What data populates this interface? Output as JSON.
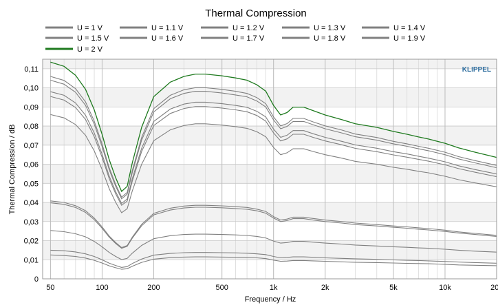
{
  "chart_data": {
    "type": "line",
    "title": "Thermal Compression",
    "xlabel": "Frequency / Hz",
    "ylabel": "Thermal Compression / dB",
    "x_scale": "log",
    "xlim": [
      45,
      20000
    ],
    "ylim": [
      0,
      0.115
    ],
    "grid": true,
    "legend_position": "top",
    "watermark": "KLIPPEL",
    "colors": {
      "series": "#808080",
      "highlight": "#1f7a1f",
      "watermark": "#2f6e9f",
      "plot_background": "#f2f2f2"
    },
    "x_ticks": [
      {
        "value": 50,
        "label": "50"
      },
      {
        "value": 100,
        "label": "100"
      },
      {
        "value": 200,
        "label": "200"
      },
      {
        "value": 500,
        "label": "500"
      },
      {
        "value": 1000,
        "label": "1k"
      },
      {
        "value": 2000,
        "label": "2k"
      },
      {
        "value": 5000,
        "label": "5k"
      },
      {
        "value": 10000,
        "label": "10k"
      },
      {
        "value": 20000,
        "label": "20k"
      }
    ],
    "y_ticks": [
      {
        "value": 0,
        "label": "0"
      },
      {
        "value": 0.01,
        "label": "0,01"
      },
      {
        "value": 0.02,
        "label": "0,02"
      },
      {
        "value": 0.03,
        "label": "0,03"
      },
      {
        "value": 0.04,
        "label": "0,04"
      },
      {
        "value": 0.05,
        "label": "0,05"
      },
      {
        "value": 0.06,
        "label": "0,06"
      },
      {
        "value": 0.07,
        "label": "0,07"
      },
      {
        "value": 0.08,
        "label": "0,08"
      },
      {
        "value": 0.09,
        "label": "0,09"
      },
      {
        "value": 0.1,
        "label": "0,10"
      },
      {
        "value": 0.11,
        "label": "0,11"
      }
    ],
    "x": [
      50,
      60,
      70,
      80,
      90,
      100,
      110,
      120,
      130,
      140,
      150,
      170,
      200,
      250,
      300,
      350,
      400,
      500,
      600,
      700,
      800,
      900,
      1000,
      1100,
      1200,
      1300,
      1500,
      1700,
      2000,
      2500,
      3000,
      4000,
      5000,
      6000,
      7000,
      8000,
      10000,
      12000,
      15000,
      20000
    ],
    "series": [
      {
        "name": "U = 1 V",
        "values": [
          0.0125,
          0.0122,
          0.0117,
          0.0109,
          0.0097,
          0.0083,
          0.0068,
          0.0058,
          0.005,
          0.0053,
          0.0066,
          0.0086,
          0.0103,
          0.0111,
          0.0114,
          0.0115,
          0.0115,
          0.0114,
          0.0113,
          0.0112,
          0.011,
          0.0106,
          0.0098,
          0.0092,
          0.0093,
          0.0096,
          0.0096,
          0.0094,
          0.0092,
          0.0089,
          0.0087,
          0.0085,
          0.0083,
          0.0081,
          0.008,
          0.0079,
          0.0076,
          0.0073,
          0.0071,
          0.0069
        ]
      },
      {
        "name": "U = 1.1 V",
        "values": [
          0.015,
          0.0147,
          0.0141,
          0.0131,
          0.0117,
          0.01,
          0.0082,
          0.007,
          0.006,
          0.0064,
          0.008,
          0.0104,
          0.0124,
          0.0133,
          0.0137,
          0.0138,
          0.0138,
          0.0137,
          0.0136,
          0.0134,
          0.0131,
          0.0127,
          0.0117,
          0.011,
          0.0112,
          0.0115,
          0.0115,
          0.0113,
          0.011,
          0.0107,
          0.0105,
          0.0102,
          0.0099,
          0.0097,
          0.0096,
          0.0094,
          0.0091,
          0.0088,
          0.0085,
          0.0082
        ]
      },
      {
        "name": "U = 1.2 V",
        "values": [
          0.0253,
          0.0247,
          0.0236,
          0.022,
          0.0196,
          0.0168,
          0.0138,
          0.0117,
          0.0101,
          0.0107,
          0.0134,
          0.0175,
          0.021,
          0.0226,
          0.0232,
          0.0234,
          0.0234,
          0.0232,
          0.023,
          0.0227,
          0.0222,
          0.0214,
          0.0198,
          0.0187,
          0.019,
          0.0196,
          0.0196,
          0.0192,
          0.0187,
          0.0182,
          0.0177,
          0.0172,
          0.0168,
          0.0165,
          0.0162,
          0.016,
          0.0155,
          0.015,
          0.0145,
          0.014
        ]
      },
      {
        "name": "U = 1.3 V",
        "values": [
          0.0398,
          0.039,
          0.0374,
          0.0348,
          0.031,
          0.0265,
          0.0218,
          0.0185,
          0.016,
          0.017,
          0.0213,
          0.0278,
          0.0335,
          0.036,
          0.0371,
          0.0375,
          0.0375,
          0.0372,
          0.0368,
          0.0364,
          0.0356,
          0.0344,
          0.0318,
          0.03,
          0.0305,
          0.0315,
          0.0315,
          0.0308,
          0.03,
          0.0292,
          0.0284,
          0.0277,
          0.027,
          0.0265,
          0.026,
          0.0256,
          0.0248,
          0.024,
          0.0232,
          0.0222
        ]
      },
      {
        "name": "U = 1.4 V",
        "values": [
          0.0408,
          0.04,
          0.0383,
          0.0357,
          0.0318,
          0.0272,
          0.0224,
          0.019,
          0.0164,
          0.0174,
          0.0218,
          0.0285,
          0.0343,
          0.037,
          0.0381,
          0.0385,
          0.0385,
          0.0382,
          0.0378,
          0.0374,
          0.0365,
          0.0353,
          0.0326,
          0.0308,
          0.0313,
          0.0323,
          0.0323,
          0.0316,
          0.0308,
          0.03,
          0.0292,
          0.0284,
          0.0277,
          0.0272,
          0.0267,
          0.0263,
          0.0255,
          0.0246,
          0.0238,
          0.0228
        ]
      },
      {
        "name": "U = 1.5 V",
        "values": [
          0.086,
          0.0843,
          0.0808,
          0.0752,
          0.067,
          0.0573,
          0.0472,
          0.04,
          0.0346,
          0.0367,
          0.046,
          0.06,
          0.0723,
          0.078,
          0.0803,
          0.0812,
          0.0812,
          0.0805,
          0.0797,
          0.0788,
          0.077,
          0.0744,
          0.0688,
          0.065,
          0.066,
          0.0681,
          0.0681,
          0.0667,
          0.065,
          0.0632,
          0.0615,
          0.06,
          0.0584,
          0.0574,
          0.0563,
          0.0555,
          0.0537,
          0.0519,
          0.0502,
          0.0482
        ]
      },
      {
        "name": "U = 1.6 V",
        "values": [
          0.0955,
          0.0936,
          0.0897,
          0.0835,
          0.0744,
          0.0637,
          0.0524,
          0.0445,
          0.0385,
          0.0407,
          0.0511,
          0.0667,
          0.0803,
          0.0866,
          0.0892,
          0.0902,
          0.0902,
          0.0894,
          0.0885,
          0.0875,
          0.0855,
          0.0826,
          0.0764,
          0.0722,
          0.0733,
          0.0757,
          0.0757,
          0.0741,
          0.0722,
          0.0702,
          0.0683,
          0.0666,
          0.0649,
          0.0637,
          0.0626,
          0.0616,
          0.0597,
          0.0577,
          0.0558,
          0.0535
        ]
      },
      {
        "name": "U = 1.7 V",
        "values": [
          0.098,
          0.0961,
          0.0921,
          0.0857,
          0.0764,
          0.0653,
          0.0538,
          0.0456,
          0.0395,
          0.0418,
          0.0524,
          0.0684,
          0.0824,
          0.0889,
          0.0915,
          0.0925,
          0.0925,
          0.0917,
          0.0908,
          0.0898,
          0.0877,
          0.0848,
          0.0784,
          0.0741,
          0.0752,
          0.0776,
          0.0776,
          0.076,
          0.0741,
          0.072,
          0.0701,
          0.0684,
          0.0666,
          0.0654,
          0.0642,
          0.0632,
          0.0613,
          0.0592,
          0.0572,
          0.0549
        ]
      },
      {
        "name": "U = 1.8 V",
        "values": [
          0.104,
          0.1019,
          0.0977,
          0.0909,
          0.081,
          0.0693,
          0.0571,
          0.0484,
          0.0419,
          0.0443,
          0.0556,
          0.0726,
          0.0874,
          0.0943,
          0.0971,
          0.0982,
          0.0982,
          0.0973,
          0.0963,
          0.0953,
          0.0931,
          0.09,
          0.0832,
          0.0786,
          0.0798,
          0.0824,
          0.0824,
          0.0807,
          0.0786,
          0.0764,
          0.0744,
          0.0726,
          0.0707,
          0.0694,
          0.0681,
          0.0671,
          0.065,
          0.0628,
          0.0607,
          0.0582
        ]
      },
      {
        "name": "U = 1.9 V",
        "values": [
          0.106,
          0.1039,
          0.0996,
          0.0927,
          0.0826,
          0.0707,
          0.0582,
          0.0494,
          0.0428,
          0.0452,
          0.0567,
          0.074,
          0.0891,
          0.0961,
          0.099,
          0.1001,
          0.1001,
          0.0992,
          0.0982,
          0.0971,
          0.0949,
          0.0917,
          0.0848,
          0.0801,
          0.0813,
          0.084,
          0.084,
          0.0822,
          0.0801,
          0.0779,
          0.0758,
          0.074,
          0.072,
          0.0707,
          0.0694,
          0.0684,
          0.0663,
          0.064,
          0.0619,
          0.0594
        ]
      },
      {
        "name": "U = 2 V",
        "values": [
          0.1135,
          0.1113,
          0.1066,
          0.0993,
          0.0885,
          0.0757,
          0.0624,
          0.0529,
          0.0458,
          0.0484,
          0.0607,
          0.0793,
          0.0954,
          0.103,
          0.106,
          0.1072,
          0.1072,
          0.1063,
          0.1052,
          0.104,
          0.1016,
          0.0983,
          0.0908,
          0.0858,
          0.0871,
          0.0899,
          0.0899,
          0.0881,
          0.0858,
          0.0834,
          0.0812,
          0.0793,
          0.0772,
          0.0757,
          0.0743,
          0.0732,
          0.071,
          0.0686,
          0.0663,
          0.0636
        ]
      }
    ]
  }
}
